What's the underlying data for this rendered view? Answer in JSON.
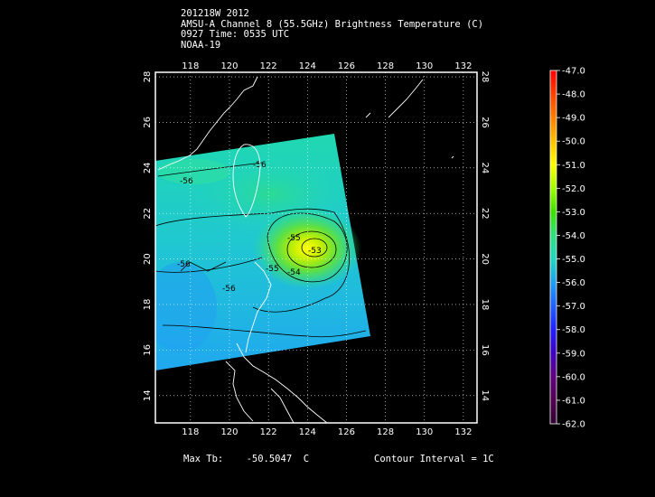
{
  "header": {
    "line1": "201218W 2012",
    "line2": "AMSU-A Channel 8 (55.5GHz) Brightness Temperature (C)",
    "line3": "0927 Time: 0535 UTC",
    "line4": "NOAA-19"
  },
  "axes": {
    "lon_ticks": [
      "118",
      "120",
      "122",
      "124",
      "126",
      "128",
      "130",
      "132"
    ],
    "lat_ticks": [
      "14",
      "16",
      "18",
      "20",
      "22",
      "24",
      "26",
      "28"
    ],
    "lon_range": [
      116.2,
      132.7
    ],
    "lat_range": [
      12.8,
      28.2
    ]
  },
  "colorbar": {
    "labels": [
      "-47.0",
      "-48.0",
      "-49.0",
      "-50.0",
      "-51.0",
      "-52.0",
      "-53.0",
      "-54.0",
      "-55.0",
      "-56.0",
      "-57.0",
      "-58.0",
      "-59.0",
      "-60.0",
      "-61.0",
      "-62.0"
    ],
    "colors": [
      "#ff0000",
      "#ff4000",
      "#ff8000",
      "#ffbf00",
      "#ffff00",
      "#a0ff00",
      "#40e000",
      "#30e080",
      "#20d8c0",
      "#20a0f0",
      "#2060ff",
      "#2020ff",
      "#4000c0",
      "#600080",
      "#500050",
      "#300030"
    ]
  },
  "contour_labels": [
    "-56",
    "-55",
    "-56",
    "-56",
    "-55",
    "-54",
    "-53",
    "-56"
  ],
  "footer": {
    "max_label": "Max Tb:",
    "max_value": "-50.5047",
    "max_unit": "C",
    "contour_interval": "Contour Interval = 1C"
  }
}
